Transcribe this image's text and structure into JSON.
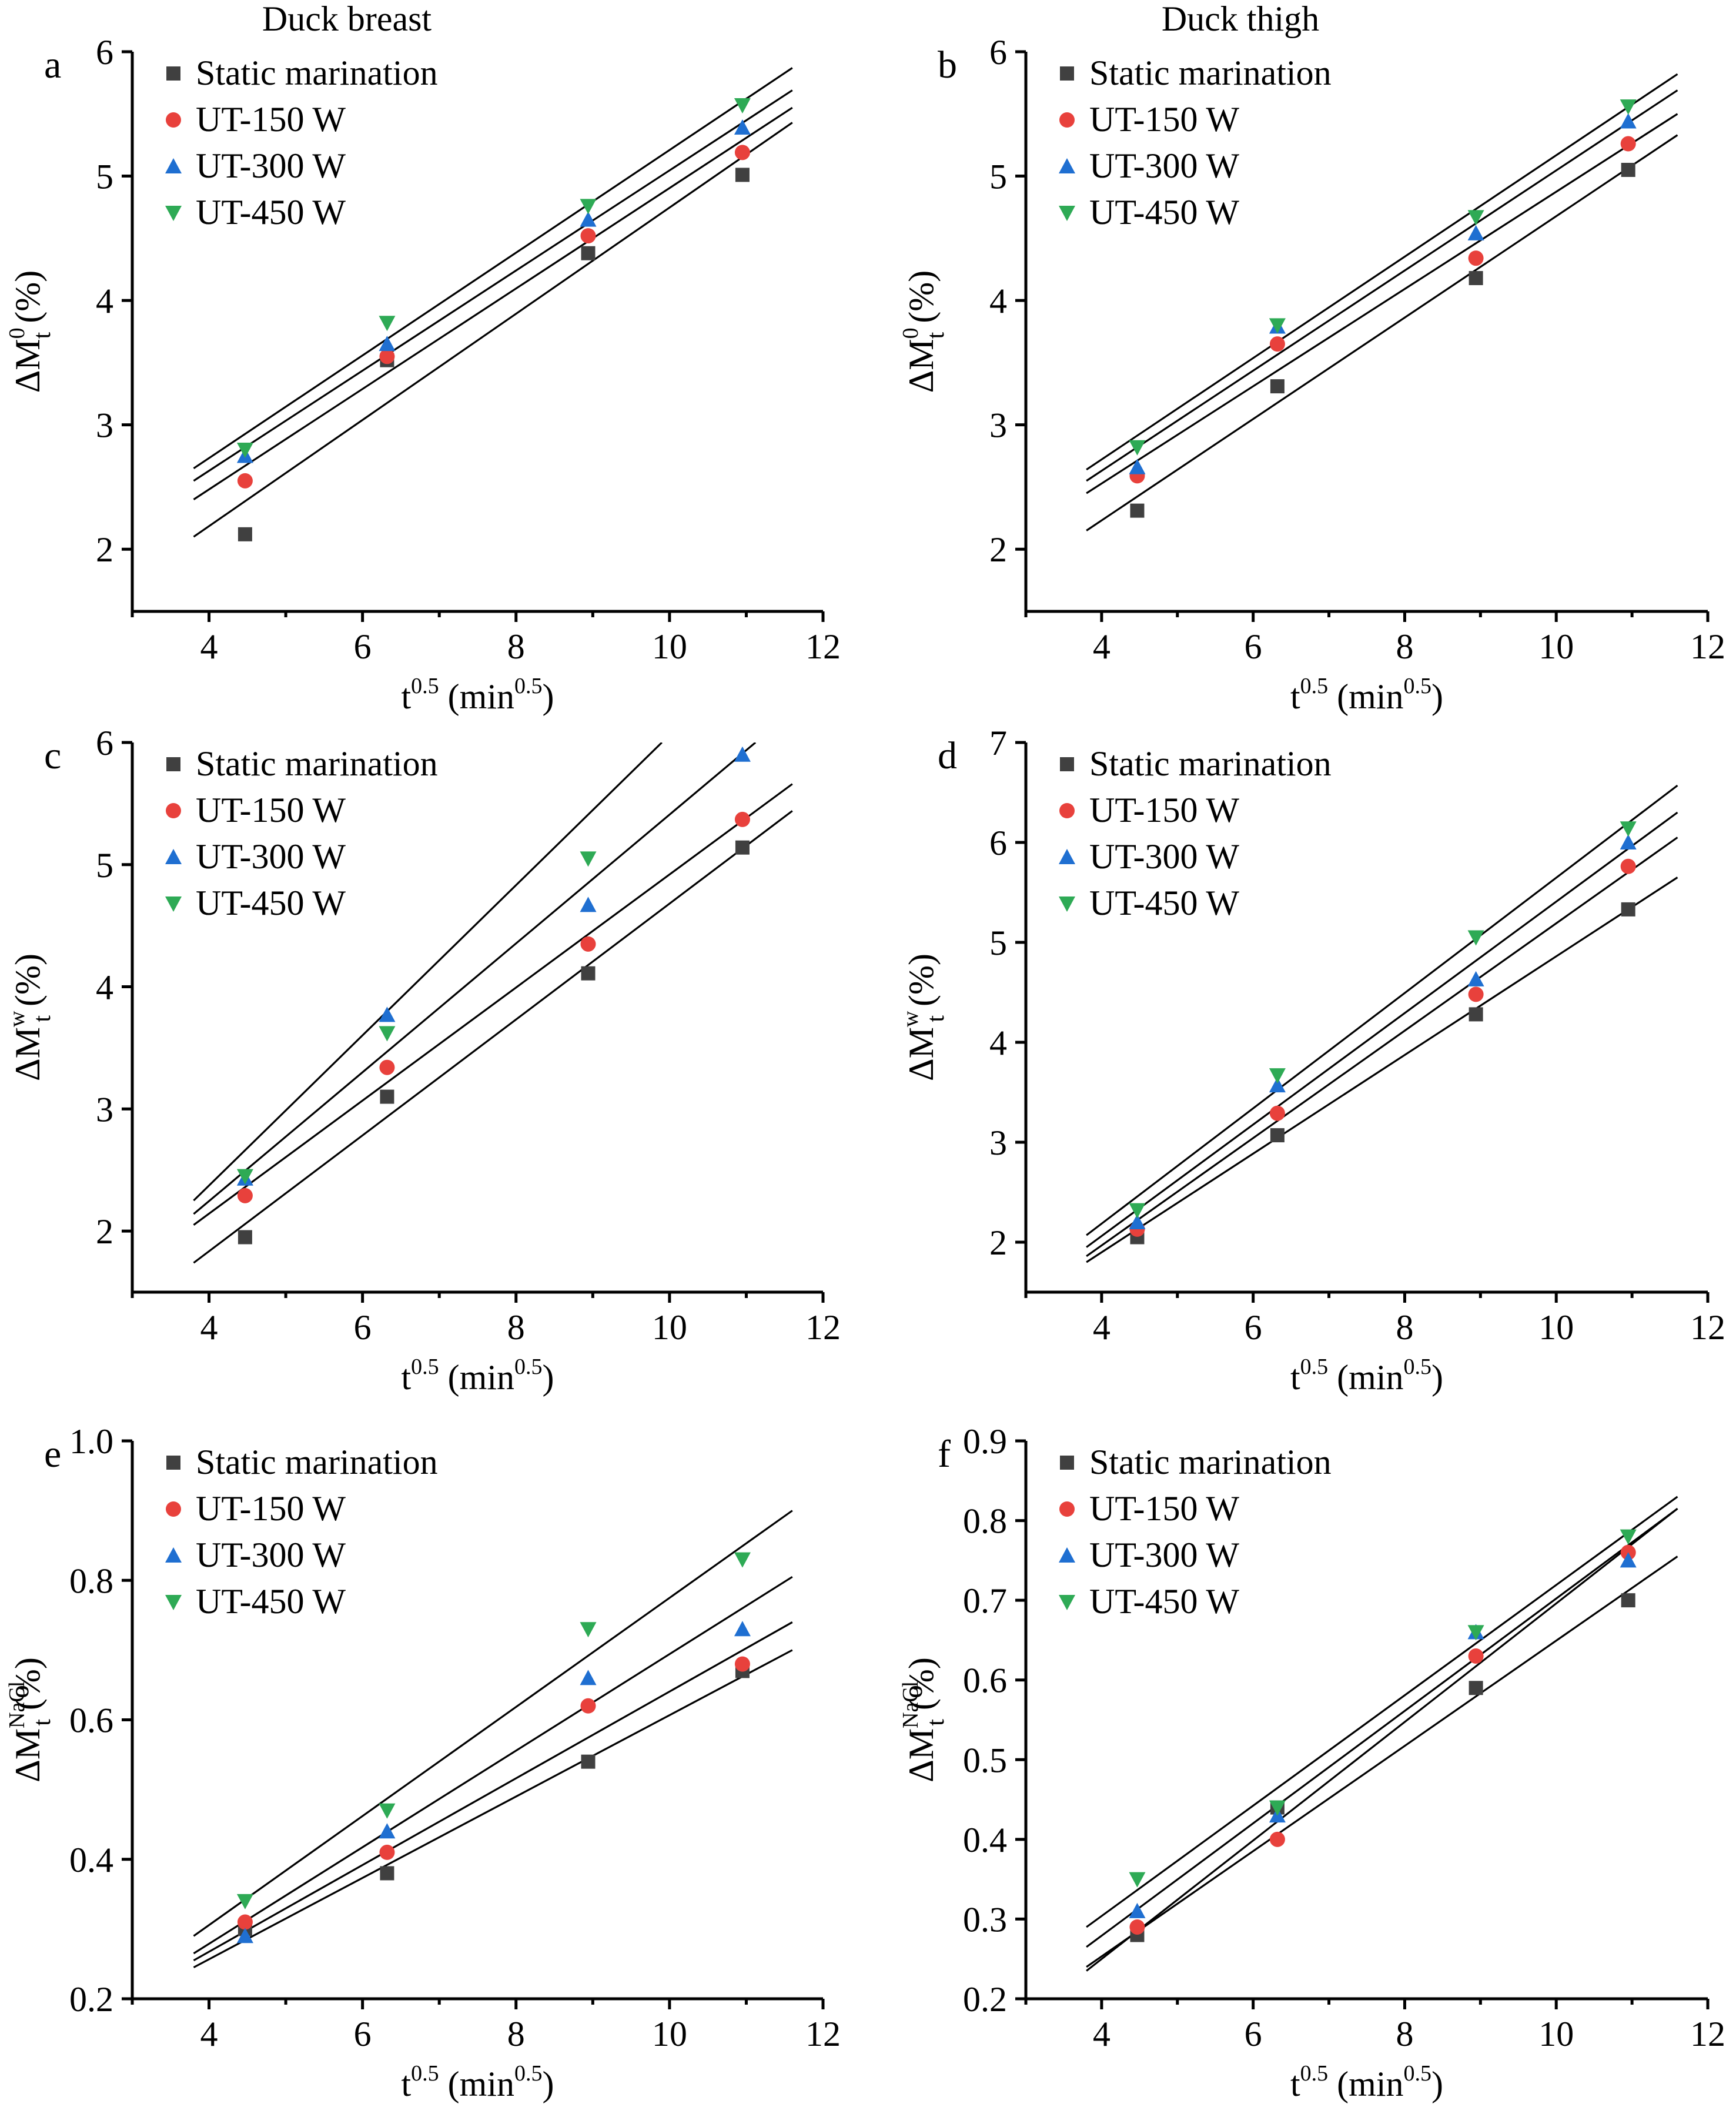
{
  "chart_data": [
    {
      "type": "scatter",
      "panel_label": "a",
      "column_title": "Duck breast",
      "xlabel": "t",
      "xlabel_sup": "0.5",
      "xlabel_unit": " (min",
      "xlabel_unit_sup": "0.5",
      "xlabel_end": ")",
      "ylabel_main": "ΔM",
      "ylabel_sub": "t",
      "ylabel_sup": "0",
      "ylabel_unit": " (%)",
      "xlim": [
        3,
        12
      ],
      "ylim": [
        1.5,
        6
      ],
      "xticks": [
        4,
        6,
        8,
        10,
        12
      ],
      "yticks": [
        2,
        3,
        4,
        5,
        6
      ],
      "ytick_decimals": 0,
      "x": [
        4.47,
        6.32,
        8.94,
        10.95
      ],
      "series": [
        {
          "name": "Static marination",
          "y": [
            2.12,
            3.52,
            4.38,
            5.01
          ],
          "fit": [
            [
              3.8,
              2.1
            ],
            [
              11.6,
              5.43
            ]
          ]
        },
        {
          "name": "UT-150 W",
          "y": [
            2.55,
            3.55,
            4.52,
            5.19
          ],
          "fit": [
            [
              3.8,
              2.4
            ],
            [
              11.6,
              5.55
            ]
          ]
        },
        {
          "name": "UT-300 W",
          "y": [
            2.75,
            3.65,
            4.65,
            5.39
          ],
          "fit": [
            [
              3.8,
              2.55
            ],
            [
              11.6,
              5.69
            ]
          ]
        },
        {
          "name": "UT-450 W",
          "y": [
            2.8,
            3.82,
            4.76,
            5.57
          ],
          "fit": [
            [
              3.8,
              2.65
            ],
            [
              11.6,
              5.87
            ]
          ]
        }
      ],
      "legend_placement": "top-left",
      "grid": false
    },
    {
      "type": "scatter",
      "panel_label": "b",
      "column_title": "Duck thigh",
      "xlabel": "t",
      "xlabel_sup": "0.5",
      "xlabel_unit": " (min",
      "xlabel_unit_sup": "0.5",
      "xlabel_end": ")",
      "ylabel_main": "ΔM",
      "ylabel_sub": "t",
      "ylabel_sup": "0",
      "ylabel_unit": " (%)",
      "xlim": [
        3,
        12
      ],
      "ylim": [
        1.5,
        6
      ],
      "xticks": [
        4,
        6,
        8,
        10,
        12
      ],
      "yticks": [
        2,
        3,
        4,
        5,
        6
      ],
      "ytick_decimals": 0,
      "x": [
        4.47,
        6.32,
        8.94,
        10.95
      ],
      "series": [
        {
          "name": "Static marination",
          "y": [
            2.31,
            3.31,
            4.18,
            5.05
          ],
          "fit": [
            [
              3.8,
              2.15
            ],
            [
              11.6,
              5.33
            ]
          ]
        },
        {
          "name": "UT-150 W",
          "y": [
            2.59,
            3.65,
            4.34,
            5.26
          ],
          "fit": [
            [
              3.8,
              2.45
            ],
            [
              11.6,
              5.5
            ]
          ]
        },
        {
          "name": "UT-300 W",
          "y": [
            2.66,
            3.79,
            4.54,
            5.44
          ],
          "fit": [
            [
              3.8,
              2.55
            ],
            [
              11.6,
              5.69
            ]
          ]
        },
        {
          "name": "UT-450 W",
          "y": [
            2.82,
            3.8,
            4.67,
            5.56
          ],
          "fit": [
            [
              3.8,
              2.64
            ],
            [
              11.6,
              5.82
            ]
          ]
        }
      ],
      "legend_placement": "top-left",
      "grid": false
    },
    {
      "type": "scatter",
      "panel_label": "c",
      "column_title": "",
      "xlabel": "t",
      "xlabel_sup": "0.5",
      "xlabel_unit": " (min",
      "xlabel_unit_sup": "0.5",
      "xlabel_end": ")",
      "ylabel_main": "ΔM",
      "ylabel_sub": "t",
      "ylabel_sup": "w",
      "ylabel_unit": " (%)",
      "xlim": [
        3,
        12
      ],
      "ylim": [
        1.5,
        6
      ],
      "xticks": [
        4,
        6,
        8,
        10,
        12
      ],
      "yticks": [
        2,
        3,
        4,
        5,
        6
      ],
      "ytick_decimals": 0,
      "x": [
        4.47,
        6.32,
        8.94,
        10.95
      ],
      "series": [
        {
          "name": "Static marination",
          "y": [
            1.95,
            3.1,
            4.11,
            5.14
          ],
          "fit": [
            [
              3.8,
              1.74
            ],
            [
              11.6,
              5.44
            ]
          ]
        },
        {
          "name": "UT-150 W",
          "y": [
            2.29,
            3.34,
            4.35,
            5.37
          ],
          "fit": [
            [
              3.8,
              2.05
            ],
            [
              11.6,
              5.66
            ]
          ]
        },
        {
          "name": "UT-300 W",
          "y": [
            2.43,
            3.77,
            4.67,
            5.9
          ],
          "fit": [
            [
              3.8,
              2.14
            ],
            [
              11.12,
              6.0
            ]
          ]
        },
        {
          "name": "UT-450 W",
          "y": [
            2.45,
            3.62,
            5.05,
            null
          ],
          "fit": [
            [
              3.8,
              2.25
            ],
            [
              9.9,
              6.0
            ]
          ]
        }
      ],
      "legend_placement": "top-left",
      "grid": false
    },
    {
      "type": "scatter",
      "panel_label": "d",
      "column_title": "",
      "xlabel": "t",
      "xlabel_sup": "0.5",
      "xlabel_unit": " (min",
      "xlabel_unit_sup": "0.5",
      "xlabel_end": ")",
      "ylabel_main": "ΔM",
      "ylabel_sub": "t",
      "ylabel_sup": "w",
      "ylabel_unit": " (%)",
      "xlim": [
        3,
        12
      ],
      "ylim": [
        1.5,
        7
      ],
      "xticks": [
        4,
        6,
        8,
        10,
        12
      ],
      "yticks": [
        2,
        3,
        4,
        5,
        6,
        7
      ],
      "ytick_decimals": 0,
      "x": [
        4.47,
        6.32,
        8.94,
        10.95
      ],
      "series": [
        {
          "name": "Static marination",
          "y": [
            2.05,
            3.07,
            4.28,
            5.33
          ],
          "fit": [
            [
              3.8,
              1.8
            ],
            [
              11.6,
              5.65
            ]
          ]
        },
        {
          "name": "UT-150 W",
          "y": [
            2.13,
            3.29,
            4.48,
            5.76
          ],
          "fit": [
            [
              3.8,
              1.86
            ],
            [
              11.6,
              6.05
            ]
          ]
        },
        {
          "name": "UT-300 W",
          "y": [
            2.2,
            3.57,
            4.63,
            6.0
          ],
          "fit": [
            [
              3.8,
              1.95
            ],
            [
              11.6,
              6.3
            ]
          ]
        },
        {
          "name": "UT-450 W",
          "y": [
            2.32,
            3.67,
            5.05,
            6.14
          ],
          "fit": [
            [
              3.8,
              2.07
            ],
            [
              11.6,
              6.57
            ]
          ]
        }
      ],
      "legend_placement": "top-left",
      "grid": false
    },
    {
      "type": "scatter",
      "panel_label": "e",
      "column_title": "",
      "xlabel": "t",
      "xlabel_sup": "0.5",
      "xlabel_unit": " (min",
      "xlabel_unit_sup": "0.5",
      "xlabel_end": ")",
      "ylabel_main": "ΔM",
      "ylabel_sub": "t",
      "ylabel_sup": "NaCl",
      "ylabel_unit": " (%)",
      "xlim": [
        3,
        12
      ],
      "ylim": [
        0.2,
        1.0
      ],
      "xticks": [
        4,
        6,
        8,
        10,
        12
      ],
      "yticks": [
        0.2,
        0.4,
        0.6,
        0.8,
        1.0
      ],
      "ytick_decimals": 1,
      "x": [
        4.47,
        6.32,
        8.94,
        10.95
      ],
      "series": [
        {
          "name": "Static marination",
          "y": [
            0.3,
            0.38,
            0.54,
            0.67
          ],
          "fit": [
            [
              3.8,
              0.245
            ],
            [
              11.6,
              0.7
            ]
          ]
        },
        {
          "name": "UT-150 W",
          "y": [
            0.31,
            0.41,
            0.62,
            0.68
          ],
          "fit": [
            [
              3.8,
              0.255
            ],
            [
              11.6,
              0.74
            ]
          ]
        },
        {
          "name": "UT-300 W",
          "y": [
            0.29,
            0.44,
            0.66,
            0.73
          ],
          "fit": [
            [
              3.8,
              0.265
            ],
            [
              11.6,
              0.805
            ]
          ]
        },
        {
          "name": "UT-450 W",
          "y": [
            0.34,
            0.47,
            0.73,
            0.83
          ],
          "fit": [
            [
              3.8,
              0.29
            ],
            [
              11.6,
              0.9
            ]
          ]
        }
      ],
      "legend_placement": "top-left",
      "grid": false
    },
    {
      "type": "scatter",
      "panel_label": "f",
      "column_title": "",
      "xlabel": "t",
      "xlabel_sup": "0.5",
      "xlabel_unit": " (min",
      "xlabel_unit_sup": "0.5",
      "xlabel_end": ")",
      "ylabel_main": "ΔM",
      "ylabel_sub": "t",
      "ylabel_sup": "NaCl",
      "ylabel_unit": " (%)",
      "xlim": [
        3,
        12
      ],
      "ylim": [
        0.2,
        0.9
      ],
      "xticks": [
        4,
        6,
        8,
        10,
        12
      ],
      "yticks": [
        0.2,
        0.3,
        0.4,
        0.5,
        0.6,
        0.7,
        0.8,
        0.9
      ],
      "ytick_decimals": 1,
      "x": [
        4.47,
        6.32,
        8.94,
        10.95
      ],
      "series": [
        {
          "name": "Static marination",
          "y": [
            0.28,
            0.44,
            0.59,
            0.7
          ],
          "fit": [
            [
              3.8,
              0.24
            ],
            [
              11.6,
              0.755
            ]
          ]
        },
        {
          "name": "UT-150 W",
          "y": [
            0.29,
            0.4,
            0.63,
            0.76
          ],
          "fit": [
            [
              3.8,
              0.235
            ],
            [
              11.6,
              0.815
            ]
          ]
        },
        {
          "name": "UT-300 W",
          "y": [
            0.31,
            0.43,
            0.66,
            0.75
          ],
          "fit": [
            [
              3.8,
              0.265
            ],
            [
              11.6,
              0.815
            ]
          ]
        },
        {
          "name": "UT-450 W",
          "y": [
            0.35,
            0.44,
            0.66,
            0.78
          ],
          "fit": [
            [
              3.8,
              0.29
            ],
            [
              11.6,
              0.83
            ]
          ]
        }
      ],
      "legend_placement": "top-left",
      "grid": false
    }
  ],
  "series_styles": [
    {
      "marker": "square",
      "color": "#404040"
    },
    {
      "marker": "circle",
      "color": "#e8413c"
    },
    {
      "marker": "triangle-up",
      "color": "#1f6fd1"
    },
    {
      "marker": "triangle-down",
      "color": "#2eaa55"
    }
  ],
  "colors": {
    "axis": "#000000",
    "fit_line": "#000000",
    "background": "#ffffff"
  }
}
